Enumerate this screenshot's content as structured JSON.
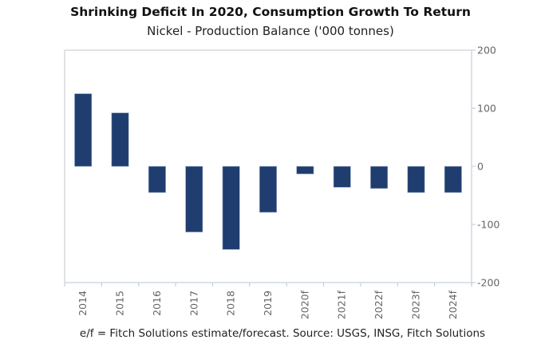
{
  "chart_data": {
    "type": "bar",
    "title": "Shrinking Deficit In 2020, Consumption Growth To Return",
    "subtitle": "Nickel - Production Balance ('000 tonnes)",
    "xlabel": "",
    "ylabel": "",
    "categories": [
      "2014",
      "2015",
      "2016",
      "2017",
      "2018",
      "2019",
      "2020f",
      "2021f",
      "2022f",
      "2023f",
      "2024f"
    ],
    "series": [
      {
        "name": "Production Balance",
        "values": [
          125,
          92,
          -45,
          -113,
          -143,
          -79,
          -13,
          -36,
          -38,
          -45,
          -45
        ]
      }
    ],
    "ylim": [
      -200,
      200
    ],
    "yticks": [
      200,
      100,
      0,
      -100,
      -200
    ],
    "y_axis_side": "right",
    "grid": false,
    "legend": "none",
    "bar_color": "#1f3d6e",
    "axis_color": "#c5cfe0",
    "footnote": "e/f = Fitch Solutions estimate/forecast. Source: USGS, INSG, Fitch Solutions"
  }
}
